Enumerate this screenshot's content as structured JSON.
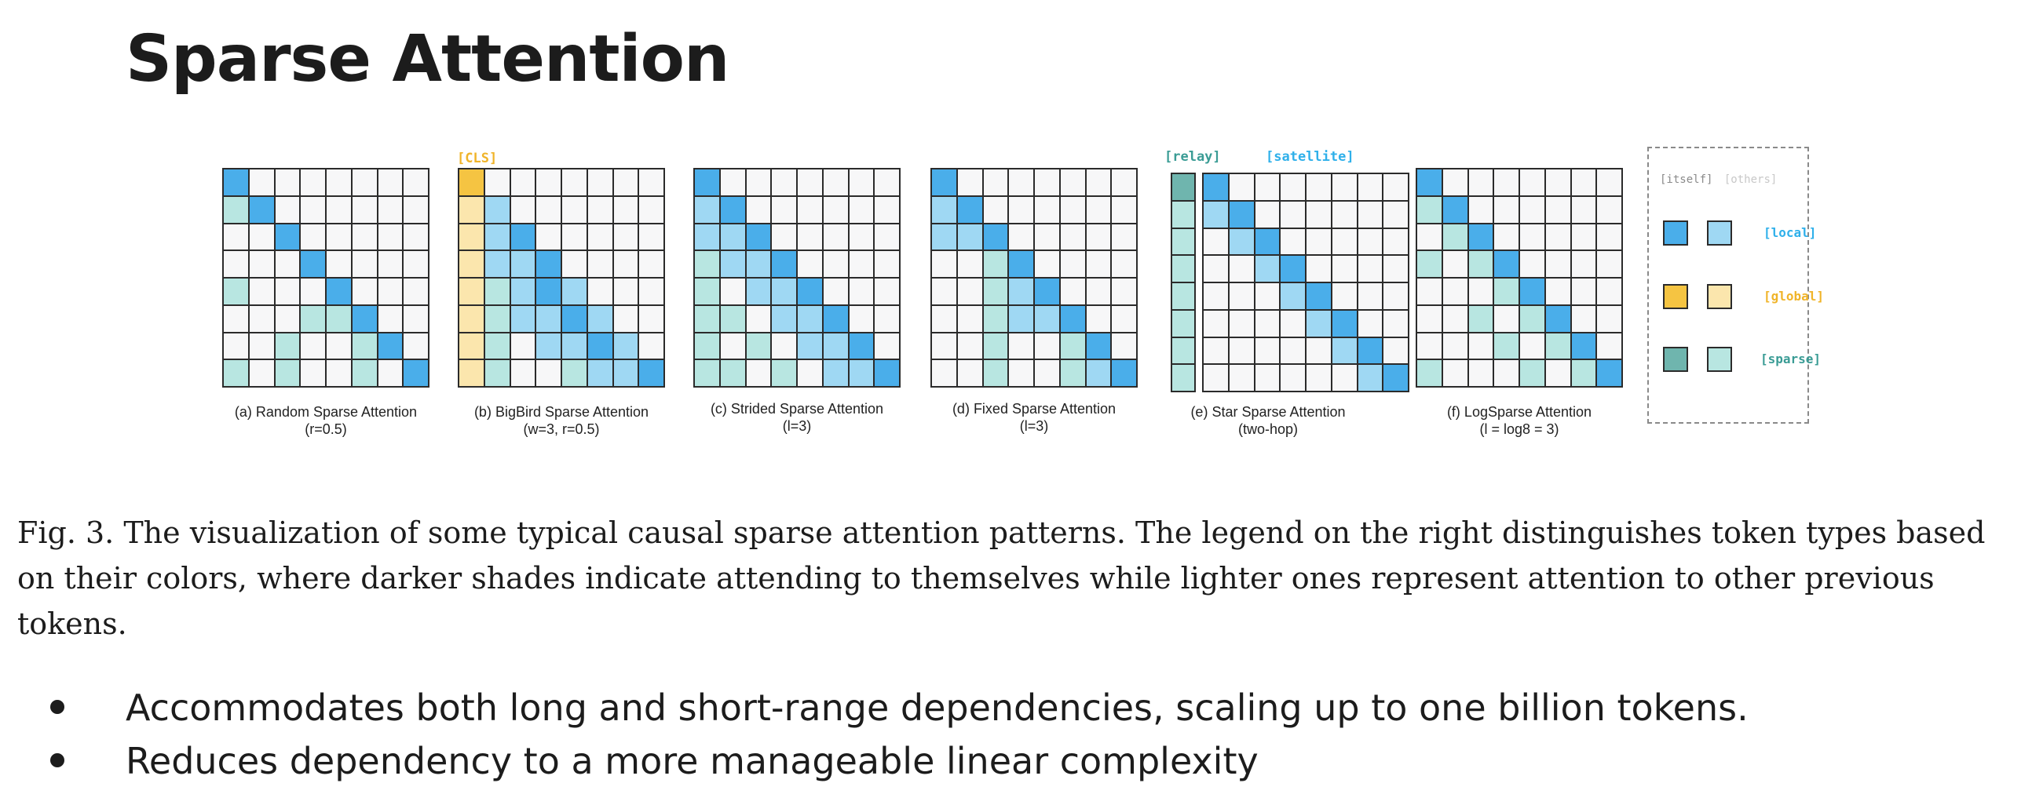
{
  "slide": {
    "title": "Sparse Attention"
  },
  "colors": {
    "local_self": "#4aaeea",
    "local_other": "#9fd8f3",
    "global_self": "#f5c442",
    "global_other": "#fbe6ad",
    "sparse_self": "#6fb5ae",
    "sparse_other": "#b8e6e1",
    "empty": "#f7f7f8",
    "tag_global": "#f0b429",
    "tag_local": "#2fb0ea",
    "tag_sparse": "#3a9c95",
    "tag_gray": "#a0a0a0"
  },
  "figure": {
    "panels": [
      {
        "id": "a",
        "caption": "(a) Random Sparse Attention",
        "sub": "(r=0.5)",
        "rows": [
          "L.......",
          "sL......",
          "..L.....",
          "...L....",
          "s...L...",
          "...ssL..",
          "..s..sL.",
          "s.s..s.L"
        ]
      },
      {
        "id": "b",
        "caption": "(b) BigBird Sparse Attention",
        "sub": "(w=3, r=0.5)",
        "tag": "[CLS]",
        "rows": [
          "G.......",
          "gl......",
          "glL.....",
          "gllL....",
          "gslLl...",
          "gsllLl..",
          "gs.llLl.",
          "gs..sllL"
        ]
      },
      {
        "id": "c",
        "caption": "(c) Strided Sparse Attention",
        "sub": "(l=3)",
        "rows": [
          "L.......",
          "lL......",
          "llL.....",
          "sllL....",
          "s.llL...",
          "ss.llL..",
          "s.s.llL.",
          "ss.s.llL"
        ]
      },
      {
        "id": "d",
        "caption": "(d) Fixed Sparse Attention",
        "sub": "(l=3)",
        "rows": [
          "L.......",
          "lL......",
          "llL.....",
          "..sL....",
          "..slL...",
          "..sllL..",
          "..s..sL.",
          "..s..slL"
        ]
      },
      {
        "id": "e",
        "caption": "(e) Star Sparse Attention",
        "sub": "(two-hop)",
        "tag": "[relay]",
        "tag2": "[satellite]",
        "rows": [
          "L.......",
          "lL......",
          ".lL.....",
          "..lL....",
          "...lL...",
          "....lL..",
          ".....lL.",
          "......lL"
        ]
      },
      {
        "id": "f",
        "caption": "(f) LogSparse Attention",
        "sub": "(l = log8 = 3)",
        "rows": [
          "L.......",
          "sL......",
          ".sL.....",
          "s.sL....",
          "...sL...",
          "..s.sL..",
          "...s.sL.",
          "s...s.sL"
        ]
      }
    ],
    "relay_col": [
      "R",
      "r",
      "r",
      "r",
      "r",
      "r",
      "r",
      "r"
    ],
    "legend": {
      "head_itself": "[itself]",
      "head_others": "[others]",
      "rows": [
        {
          "label": "[local]",
          "self_color": "#4aaeea",
          "other_color": "#9fd8f3",
          "label_color": "#2fb0ea"
        },
        {
          "label": "[global]",
          "self_color": "#f5c442",
          "other_color": "#fbe6ad",
          "label_color": "#f0b429"
        },
        {
          "label": "[sparse]",
          "self_color": "#6fb5ae",
          "other_color": "#b8e6e1",
          "label_color": "#3a9c95"
        }
      ]
    },
    "caption": "Fig. 3.  The visualization of some typical causal sparse attention patterns. The legend on the right distinguishes token types based on their colors, where darker shades indicate attending to themselves while lighter ones represent attention to other previous tokens."
  },
  "bullets": [
    "Accommodates both long and short-range dependencies, scaling up to one billion tokens.",
    "Reduces dependency to a more manageable linear complexity"
  ]
}
